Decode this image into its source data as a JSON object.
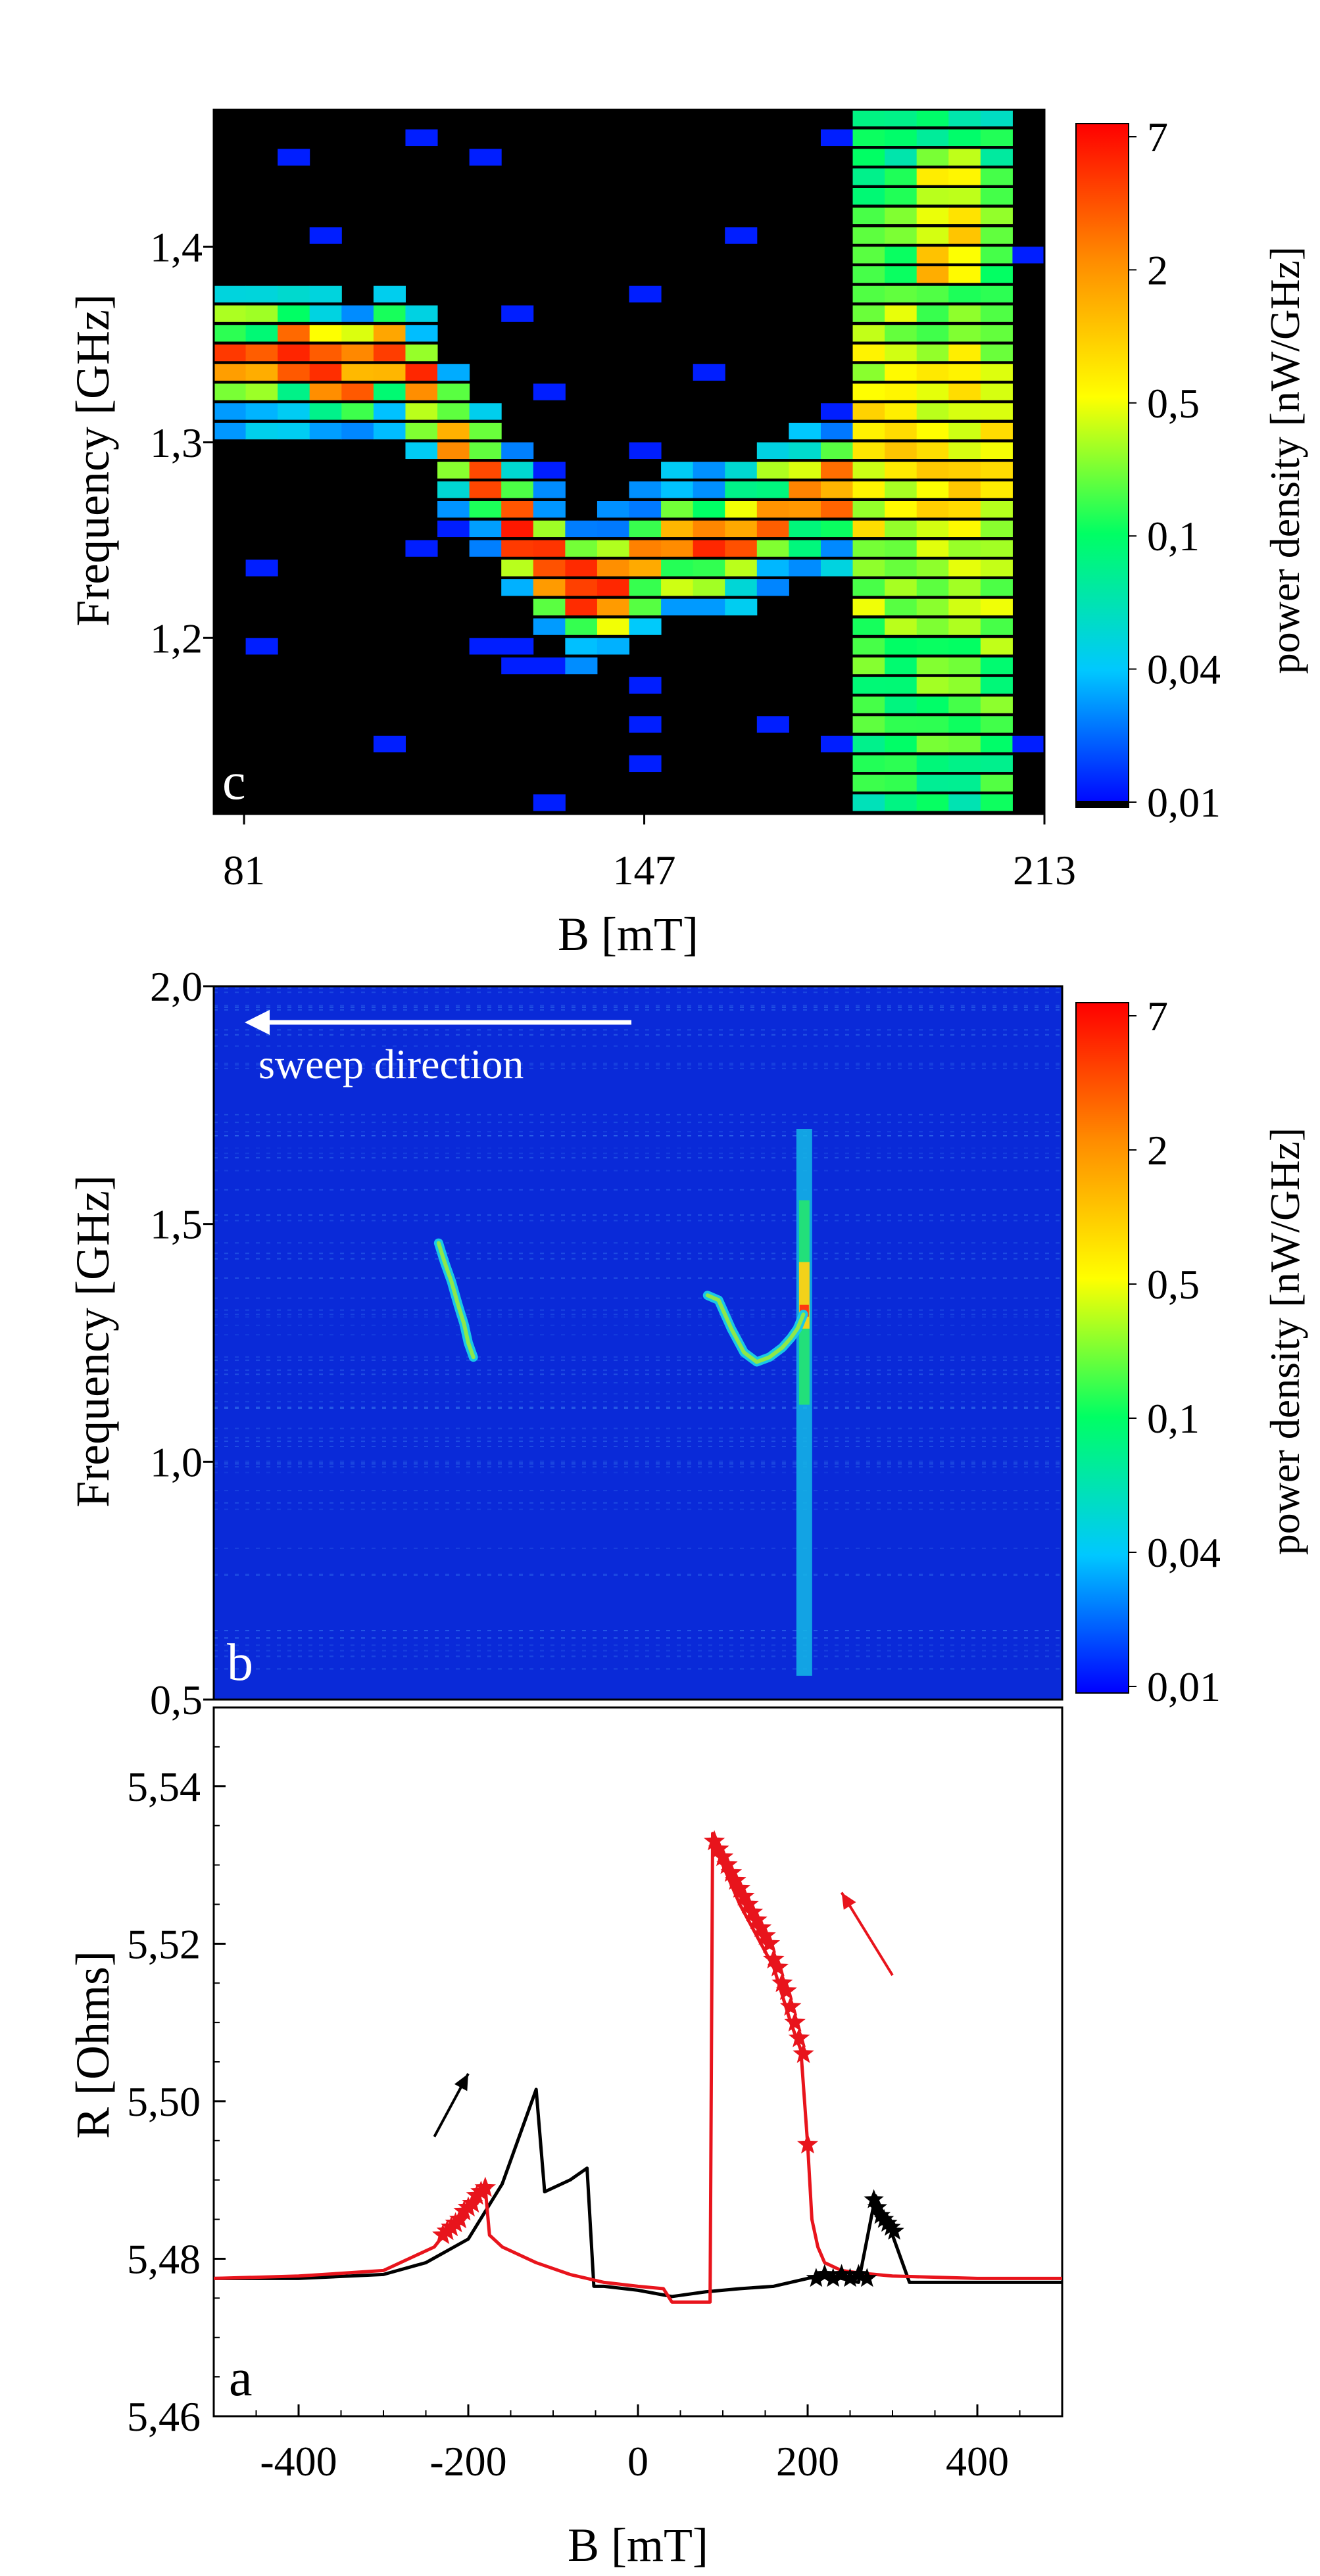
{
  "colors": {
    "bg_dark": "#000000",
    "bg_b": "#0a2ad8",
    "trace_red": "#e8141c",
    "trace_black": "#000000",
    "frame": "#000000"
  },
  "colorbar_scale": [
    "#0000ff",
    "#00c8ff",
    "#00ff64",
    "#ffff00",
    "#ff8c00",
    "#ff0000"
  ],
  "chart_data": [
    {
      "id": "c",
      "type": "heatmap",
      "panel_label": "c",
      "xlabel": "B [mT]",
      "ylabel": "Frequency [GHz]",
      "xlim": [
        76,
        213
      ],
      "ylim": [
        1.11,
        1.47
      ],
      "x_ticks": [
        {
          "value": 81,
          "label": "81"
        },
        {
          "value": 147,
          "label": "147"
        },
        {
          "value": 213,
          "label": "213"
        }
      ],
      "y_ticks": [
        {
          "value": 1.2,
          "label": "1,2"
        },
        {
          "value": 1.3,
          "label": "1,3"
        },
        {
          "value": 1.4,
          "label": "1,4"
        }
      ],
      "colorbar": {
        "label": "power density [nW/GHz]",
        "ticks": [
          "7",
          "2",
          "0,5",
          "0,1",
          "0,04",
          "0,01"
        ]
      },
      "ridge": {
        "B": [
          85,
          90,
          95,
          100,
          105,
          110,
          115,
          120,
          125,
          130,
          135,
          140,
          145,
          150,
          155,
          160,
          165,
          170,
          175,
          180
        ],
        "f": [
          1.34,
          1.345,
          1.335,
          1.335,
          1.345,
          1.33,
          1.305,
          1.285,
          1.26,
          1.24,
          1.225,
          1.22,
          1.235,
          1.245,
          1.25,
          1.245,
          1.255,
          1.265,
          1.27,
          1.275
        ]
      },
      "broadband_band": {
        "B_range": [
          181,
          207
        ],
        "f_peak": 1.29,
        "f_top_peak": 1.42
      }
    },
    {
      "id": "b",
      "type": "heatmap",
      "panel_label": "b",
      "annotation": "sweep direction",
      "xlabel": "",
      "ylabel": "Frequency [GHz]",
      "xlim": [
        -500,
        500
      ],
      "ylim": [
        0.5,
        2.0
      ],
      "y_ticks": [
        {
          "value": 0.5,
          "label": "0,5"
        },
        {
          "value": 1.0,
          "label": "1,0"
        },
        {
          "value": 1.5,
          "label": "1,5"
        },
        {
          "value": 2.0,
          "label": "2,0"
        }
      ],
      "colorbar": {
        "label": "power density [nW/GHz]",
        "ticks": [
          "7",
          "2",
          "0,5",
          "0,1",
          "0,04",
          "0,01"
        ]
      },
      "curve_negative": {
        "B": [
          -235,
          -228,
          -220,
          -212,
          -205,
          -200,
          -194
        ],
        "f": [
          1.46,
          1.42,
          1.38,
          1.33,
          1.29,
          1.25,
          1.22
        ]
      },
      "curve_positive": {
        "B": [
          82,
          95,
          110,
          125,
          140,
          155,
          170,
          180,
          188,
          195
        ],
        "f": [
          1.35,
          1.34,
          1.28,
          1.23,
          1.21,
          1.22,
          1.24,
          1.26,
          1.28,
          1.31
        ]
      },
      "vertical_line": {
        "B": 196,
        "f_range": [
          0.55,
          1.7
        ]
      }
    },
    {
      "id": "a",
      "type": "line",
      "panel_label": "a",
      "xlabel": "B [mT]",
      "ylabel": "R [Ohms]",
      "xlim": [
        -500,
        500
      ],
      "ylim": [
        5.46,
        5.55
      ],
      "x_ticks": [
        {
          "value": -400,
          "label": "-400"
        },
        {
          "value": -200,
          "label": "-200"
        },
        {
          "value": 0,
          "label": "0"
        },
        {
          "value": 200,
          "label": "200"
        },
        {
          "value": 400,
          "label": "400"
        }
      ],
      "y_ticks": [
        {
          "value": 5.46,
          "label": "5,46"
        },
        {
          "value": 5.48,
          "label": "5,48"
        },
        {
          "value": 5.5,
          "label": "5,50"
        },
        {
          "value": 5.52,
          "label": "5,52"
        },
        {
          "value": 5.54,
          "label": "5,54"
        }
      ],
      "series": [
        {
          "name": "black sweep (increasing B)",
          "color": "#000000",
          "x": [
            -500,
            -400,
            -300,
            -250,
            -200,
            -160,
            -140,
            -120,
            -110,
            -100,
            -80,
            -60,
            -52,
            -40,
            0,
            40,
            80,
            120,
            160,
            200,
            220,
            240,
            260,
            280,
            300,
            320,
            340,
            400,
            500
          ],
          "y": [
            5.4775,
            5.4775,
            5.478,
            5.4795,
            5.4825,
            5.4895,
            5.4955,
            5.5015,
            5.4885,
            5.489,
            5.49,
            5.4915,
            5.4765,
            5.4765,
            5.476,
            5.4752,
            5.4758,
            5.4762,
            5.4765,
            5.4775,
            5.478,
            5.4775,
            5.477,
            5.488,
            5.483,
            5.477,
            5.477,
            5.477,
            5.477
          ]
        },
        {
          "name": "red sweep (decreasing B)",
          "color": "#e8141c",
          "x": [
            500,
            400,
            300,
            260,
            240,
            220,
            212,
            205,
            200,
            192,
            180,
            160,
            140,
            120,
            100,
            90,
            88,
            85,
            80,
            60,
            40,
            30,
            0,
            -40,
            -80,
            -120,
            -160,
            -175,
            -180,
            -200,
            -240,
            -300,
            -400,
            -500
          ],
          "y": [
            5.4775,
            5.4775,
            5.4778,
            5.4782,
            5.4785,
            5.4795,
            5.4815,
            5.485,
            5.4945,
            5.5065,
            5.51,
            5.517,
            5.521,
            5.525,
            5.53,
            5.533,
            5.534,
            5.4745,
            5.4745,
            5.4745,
            5.4745,
            5.4762,
            5.4765,
            5.477,
            5.478,
            5.4795,
            5.4815,
            5.483,
            5.489,
            5.487,
            5.4815,
            5.4785,
            5.4778,
            5.4775
          ]
        }
      ],
      "red_star_markers": {
        "x": [
          200,
          195,
          190,
          185,
          180,
          175,
          170,
          165,
          160,
          155,
          150,
          145,
          140,
          135,
          130,
          125,
          120,
          115,
          110,
          105,
          100,
          95,
          90,
          -180,
          -185,
          -190,
          -195,
          -200,
          -205,
          -210,
          -215,
          -220,
          -225,
          -230
        ],
        "y": [
          5.4945,
          5.506,
          5.508,
          5.51,
          5.512,
          5.514,
          5.515,
          5.517,
          5.518,
          5.52,
          5.521,
          5.522,
          5.523,
          5.524,
          5.525,
          5.526,
          5.527,
          5.528,
          5.529,
          5.53,
          5.531,
          5.532,
          5.533,
          5.489,
          5.4885,
          5.488,
          5.487,
          5.4865,
          5.486,
          5.485,
          5.4845,
          5.484,
          5.4835,
          5.483
        ]
      },
      "black_star_markers": {
        "x": [
          210,
          220,
          230,
          240,
          250,
          260,
          270,
          278,
          282,
          286,
          290,
          294,
          298,
          302
        ],
        "y": [
          5.4775,
          5.478,
          5.4775,
          5.478,
          5.4775,
          5.478,
          5.4775,
          5.4875,
          5.4865,
          5.4855,
          5.485,
          5.4845,
          5.484,
          5.4835
        ]
      },
      "arrows": [
        {
          "color": "#000000",
          "from": [
            -240,
            5.4955
          ],
          "to": [
            -200,
            5.5035
          ]
        },
        {
          "color": "#e8141c",
          "from": [
            300,
            5.516
          ],
          "to": [
            240,
            5.5265
          ]
        }
      ]
    }
  ]
}
